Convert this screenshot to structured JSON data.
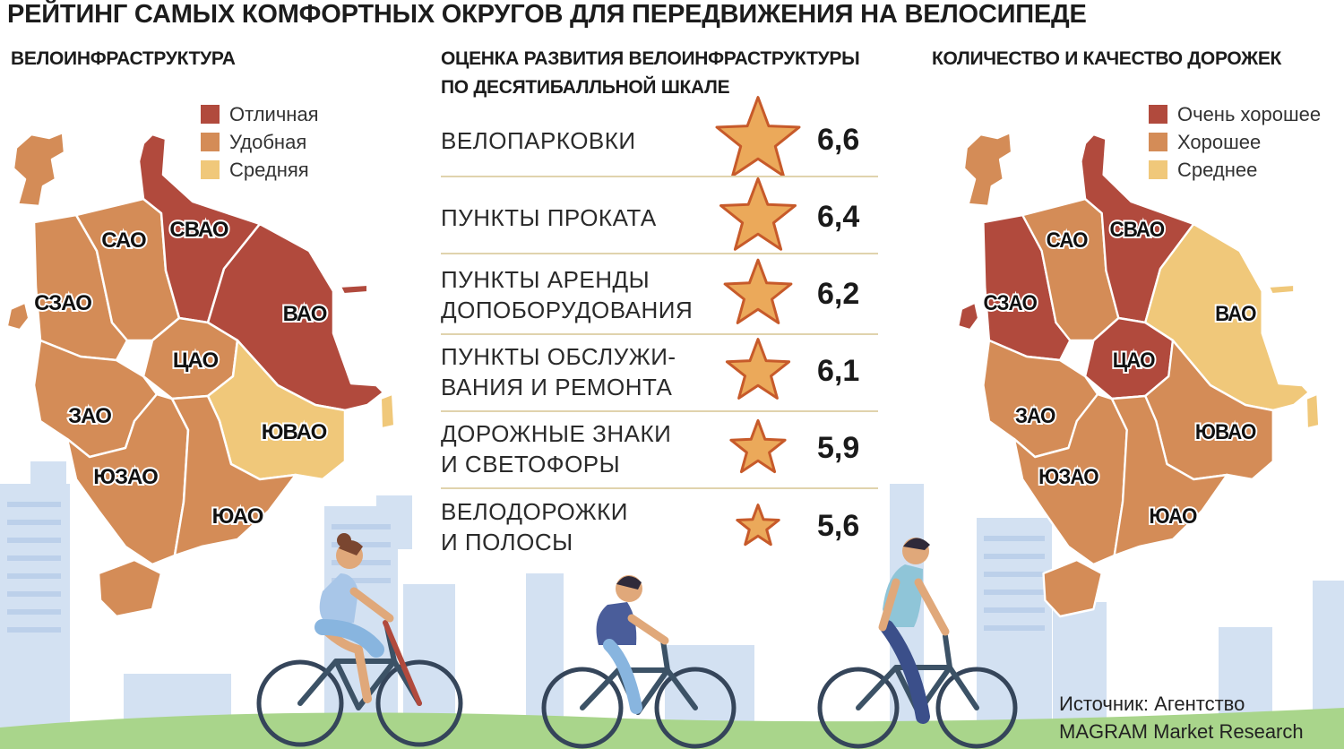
{
  "title": "РЕЙТИНГ САМЫХ КОМФОРТНЫХ ОКРУГОВ ДЛЯ ПЕРЕДВИЖЕНИЯ НА ВЕЛОСИПЕДЕ",
  "colors": {
    "dark": "#b14a3d",
    "mid": "#d48c57",
    "light": "#f0c87a",
    "star": "#eba95a",
    "star_stroke": "#c75a2a",
    "sky": "#d0dff1",
    "grass": "#a9d58b"
  },
  "left_map": {
    "subtitle": "ВЕЛОИНФРАСТРУКТУРА",
    "legend": [
      {
        "label": "Отличная",
        "color": "#b14a3d"
      },
      {
        "label": "Удобная",
        "color": "#d48c57"
      },
      {
        "label": "Средняя",
        "color": "#f0c87a"
      }
    ],
    "districts": [
      {
        "name": "САО",
        "level": "Удобная"
      },
      {
        "name": "СВАО",
        "level": "Отличная"
      },
      {
        "name": "СЗАО",
        "level": "Удобная"
      },
      {
        "name": "ВАО",
        "level": "Отличная"
      },
      {
        "name": "ЦАО",
        "level": "Удобная"
      },
      {
        "name": "ЗАО",
        "level": "Удобная"
      },
      {
        "name": "ЮВАО",
        "level": "Средняя"
      },
      {
        "name": "ЮЗАО",
        "level": "Удобная"
      },
      {
        "name": "ЮАО",
        "level": "Удобная"
      }
    ]
  },
  "right_map": {
    "subtitle": "КОЛИЧЕСТВО И КАЧЕСТВО ДОРОЖЕК",
    "legend": [
      {
        "label": "Очень хорошее",
        "color": "#b14a3d"
      },
      {
        "label": "Хорошее",
        "color": "#d48c57"
      },
      {
        "label": "Среднее",
        "color": "#f0c87a"
      }
    ],
    "districts": [
      {
        "name": "САО",
        "level": "Хорошее"
      },
      {
        "name": "СВАО",
        "level": "Очень хорошее"
      },
      {
        "name": "СЗАО",
        "level": "Очень хорошее"
      },
      {
        "name": "ВАО",
        "level": "Среднее"
      },
      {
        "name": "ЦАО",
        "level": "Очень хорошее"
      },
      {
        "name": "ЗАО",
        "level": "Хорошее"
      },
      {
        "name": "ЮВАО",
        "level": "Хорошее"
      },
      {
        "name": "ЮЗАО",
        "level": "Хорошее"
      },
      {
        "name": "ЮАО",
        "level": "Хорошее"
      }
    ]
  },
  "chart_data": {
    "type": "table",
    "title": "ОЦЕНКА РАЗВИТИЯ ВЕЛОИНФРАСТРУКТУРЫ ПО ДЕСЯТИБАЛЛЬНОЙ ШКАЛЕ",
    "scale_max": 10,
    "categories": [
      [
        "ВЕЛОПАРКОВКИ"
      ],
      [
        "ПУНКТЫ ПРОКАТА"
      ],
      [
        "ПУНКТЫ АРЕНДЫ",
        "ДОПОБОРУДОВАНИЯ"
      ],
      [
        "ПУНКТЫ ОБСЛУЖИ-",
        "ВАНИЯ И РЕМОНТА"
      ],
      [
        "ДОРОЖНЫЕ ЗНАКИ",
        "И СВЕТОФОРЫ"
      ],
      [
        "ВЕЛОДОРОЖКИ",
        "И ПОЛОСЫ"
      ]
    ],
    "values": [
      6.6,
      6.4,
      6.2,
      6.1,
      5.9,
      5.6
    ],
    "value_labels": [
      "6,6",
      "6,4",
      "6,2",
      "6,1",
      "5,9",
      "5,6"
    ]
  },
  "middle": {
    "subtitle_line1": "ОЦЕНКА РАЗВИТИЯ ВЕЛОИНФРАСТРУКТУРЫ",
    "subtitle_line2": "ПО ДЕСЯТИБАЛЛЬНОЙ ШКАЛЕ"
  },
  "source": {
    "line1": "Источник: Агентство",
    "line2": "MAGRAM Market Research"
  }
}
